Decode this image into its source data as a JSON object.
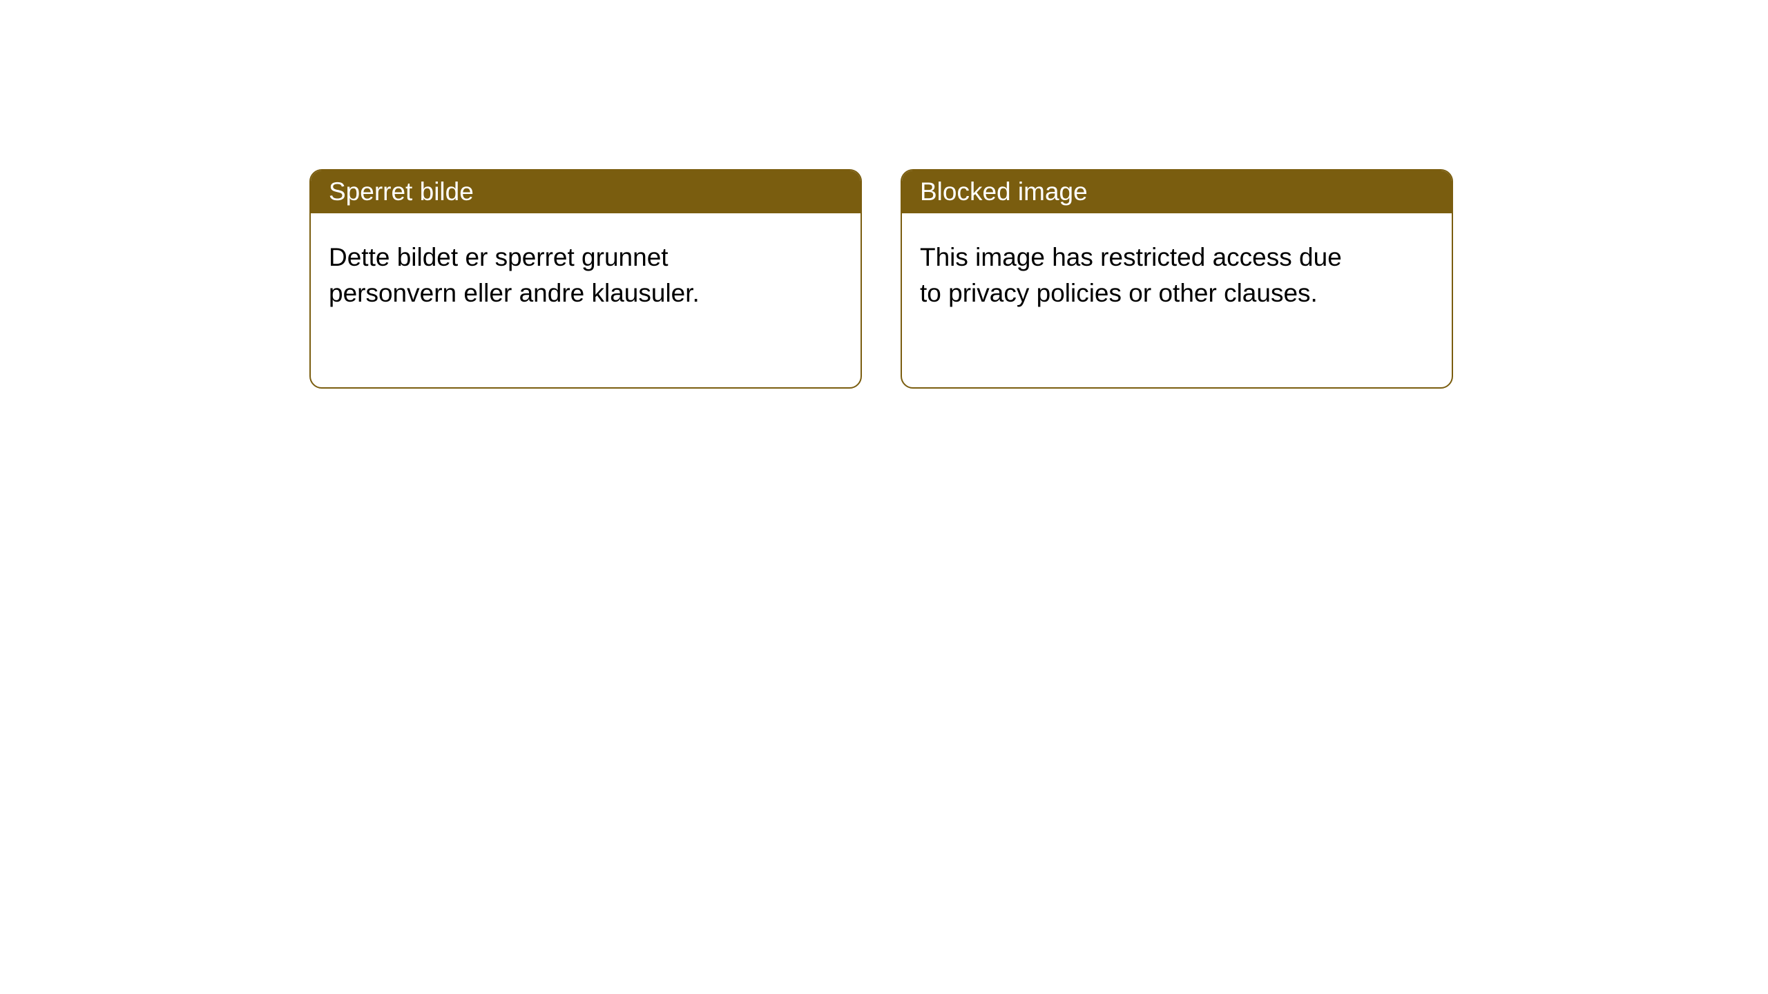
{
  "notices": {
    "left": {
      "header": "Sperret bilde",
      "body": "Dette bildet er sperret grunnet personvern eller andre klausuler."
    },
    "right": {
      "header": "Blocked image",
      "body": "This image has restricted access due to privacy policies or other clauses."
    }
  },
  "style": {
    "header_bg": "#7a5d0f",
    "header_text": "#ffffff",
    "border_color": "#7a5d0f",
    "body_text": "#000000",
    "page_bg": "#ffffff",
    "border_radius": 18,
    "header_fontsize": 37,
    "body_fontsize": 37
  }
}
